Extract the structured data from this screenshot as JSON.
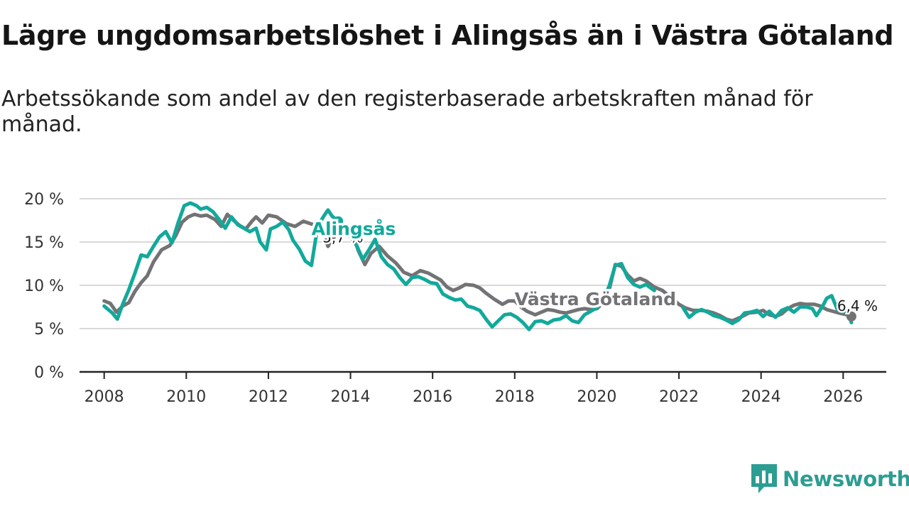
{
  "title": "Lägre ungdomsarbetslöshet i Alingsås än i Västra Götaland",
  "subtitle": "Arbetssökande som andel av den registerbaserade arbetskraften månad för månad.",
  "brand": {
    "name": "Newsworthy",
    "icon": "newsworthy-logo-icon"
  },
  "colors": {
    "alingsas": "#12a99b",
    "vastra": "#737376",
    "grid": "#d9d9d9",
    "axis": "#222222"
  },
  "chart_data": {
    "type": "line",
    "xlabel": "",
    "ylabel": "",
    "xlim": [
      2007.4,
      2027.05
    ],
    "ylim": [
      0,
      20
    ],
    "yticks": [
      0,
      5,
      10,
      15,
      20
    ],
    "ytick_labels": [
      "0 %",
      "5 %",
      "10 %",
      "15 %",
      "20 %"
    ],
    "xticks": [
      2008,
      2010,
      2012,
      2014,
      2016,
      2018,
      2020,
      2022,
      2024,
      2026
    ],
    "xtick_labels": [
      "2008",
      "2010",
      "2012",
      "2014",
      "2016",
      "2018",
      "2020",
      "2022",
      "2024",
      "2026"
    ],
    "series": [
      {
        "name": "Västra Götaland",
        "key": "vastra",
        "label": "Västra Götaland",
        "end_label": "6,4 %",
        "points": [
          [
            2008.0,
            8.2
          ],
          [
            2008.15,
            7.9
          ],
          [
            2008.3,
            6.9
          ],
          [
            2008.45,
            7.6
          ],
          [
            2008.6,
            8.0
          ],
          [
            2008.75,
            9.3
          ],
          [
            2008.9,
            10.3
          ],
          [
            2009.05,
            11.1
          ],
          [
            2009.2,
            12.7
          ],
          [
            2009.4,
            14.1
          ],
          [
            2009.6,
            14.6
          ],
          [
            2009.75,
            15.8
          ],
          [
            2009.9,
            17.3
          ],
          [
            2010.05,
            17.9
          ],
          [
            2010.2,
            18.2
          ],
          [
            2010.35,
            18.0
          ],
          [
            2010.5,
            18.1
          ],
          [
            2010.7,
            17.6
          ],
          [
            2010.85,
            16.8
          ],
          [
            2011.0,
            18.2
          ],
          [
            2011.15,
            17.5
          ],
          [
            2011.3,
            16.9
          ],
          [
            2011.45,
            16.5
          ],
          [
            2011.6,
            17.4
          ],
          [
            2011.7,
            17.9
          ],
          [
            2011.85,
            17.2
          ],
          [
            2012.0,
            18.1
          ],
          [
            2012.2,
            17.9
          ],
          [
            2012.45,
            17.1
          ],
          [
            2012.65,
            16.8
          ],
          [
            2012.85,
            17.4
          ],
          [
            2013.1,
            17.0
          ],
          [
            2013.3,
            16.6
          ],
          [
            2013.45,
            14.5
          ],
          [
            2013.65,
            15.9
          ],
          [
            2013.85,
            16.6
          ],
          [
            2014.05,
            15.9
          ],
          [
            2014.2,
            13.9
          ],
          [
            2014.35,
            12.4
          ],
          [
            2014.5,
            13.7
          ],
          [
            2014.7,
            14.5
          ],
          [
            2014.9,
            13.4
          ],
          [
            2015.1,
            12.6
          ],
          [
            2015.3,
            11.5
          ],
          [
            2015.5,
            11.1
          ],
          [
            2015.7,
            11.7
          ],
          [
            2015.9,
            11.4
          ],
          [
            2016.05,
            11.0
          ],
          [
            2016.2,
            10.6
          ],
          [
            2016.35,
            9.8
          ],
          [
            2016.5,
            9.4
          ],
          [
            2016.65,
            9.7
          ],
          [
            2016.8,
            10.1
          ],
          [
            2017.0,
            10.0
          ],
          [
            2017.15,
            9.7
          ],
          [
            2017.3,
            9.1
          ],
          [
            2017.5,
            8.4
          ],
          [
            2017.7,
            7.8
          ],
          [
            2017.85,
            8.2
          ],
          [
            2018.0,
            8.2
          ],
          [
            2018.15,
            7.5
          ],
          [
            2018.3,
            7.0
          ],
          [
            2018.5,
            6.6
          ],
          [
            2018.65,
            6.9
          ],
          [
            2018.8,
            7.2
          ],
          [
            2018.95,
            7.1
          ],
          [
            2019.1,
            6.9
          ],
          [
            2019.25,
            6.8
          ],
          [
            2019.4,
            7.0
          ],
          [
            2019.55,
            7.2
          ],
          [
            2019.7,
            7.3
          ],
          [
            2019.85,
            7.2
          ],
          [
            2020.0,
            7.3
          ],
          [
            2020.15,
            8.0
          ],
          [
            2020.3,
            9.5
          ],
          [
            2020.45,
            12.4
          ],
          [
            2020.6,
            12.2
          ],
          [
            2020.75,
            11.2
          ],
          [
            2020.9,
            10.5
          ],
          [
            2021.05,
            10.8
          ],
          [
            2021.2,
            10.5
          ],
          [
            2021.4,
            9.8
          ],
          [
            2021.6,
            9.4
          ],
          [
            2021.8,
            8.6
          ],
          [
            2022.0,
            7.8
          ],
          [
            2022.15,
            7.4
          ],
          [
            2022.35,
            7.1
          ],
          [
            2022.55,
            7.1
          ],
          [
            2022.7,
            7.0
          ],
          [
            2022.85,
            6.8
          ],
          [
            2023.0,
            6.5
          ],
          [
            2023.15,
            6.1
          ],
          [
            2023.3,
            5.9
          ],
          [
            2023.5,
            6.3
          ],
          [
            2023.7,
            6.8
          ],
          [
            2023.9,
            6.9
          ],
          [
            2024.05,
            7.1
          ],
          [
            2024.2,
            6.6
          ],
          [
            2024.35,
            6.4
          ],
          [
            2024.5,
            6.7
          ],
          [
            2024.65,
            7.3
          ],
          [
            2024.8,
            7.7
          ],
          [
            2024.95,
            7.9
          ],
          [
            2025.1,
            7.8
          ],
          [
            2025.3,
            7.8
          ],
          [
            2025.45,
            7.6
          ],
          [
            2025.6,
            7.2
          ],
          [
            2025.75,
            7.0
          ],
          [
            2025.9,
            6.8
          ],
          [
            2026.1,
            6.6
          ],
          [
            2026.2,
            6.4
          ]
        ]
      },
      {
        "name": "Alingsås",
        "key": "alingsas",
        "label": "Alingsås",
        "end_label": "5,7 %",
        "points": [
          [
            2008.0,
            7.6
          ],
          [
            2008.1,
            7.2
          ],
          [
            2008.2,
            6.8
          ],
          [
            2008.32,
            6.1
          ],
          [
            2008.45,
            7.8
          ],
          [
            2008.6,
            9.5
          ],
          [
            2008.75,
            11.4
          ],
          [
            2008.9,
            13.5
          ],
          [
            2009.05,
            13.3
          ],
          [
            2009.2,
            14.5
          ],
          [
            2009.35,
            15.6
          ],
          [
            2009.5,
            16.2
          ],
          [
            2009.65,
            14.9
          ],
          [
            2009.8,
            17.2
          ],
          [
            2009.95,
            19.2
          ],
          [
            2010.1,
            19.5
          ],
          [
            2010.25,
            19.2
          ],
          [
            2010.35,
            18.8
          ],
          [
            2010.5,
            19.0
          ],
          [
            2010.65,
            18.5
          ],
          [
            2010.8,
            17.6
          ],
          [
            2010.95,
            16.6
          ],
          [
            2011.1,
            17.9
          ],
          [
            2011.25,
            17.0
          ],
          [
            2011.4,
            16.6
          ],
          [
            2011.55,
            16.2
          ],
          [
            2011.7,
            16.6
          ],
          [
            2011.8,
            15.0
          ],
          [
            2011.95,
            14.1
          ],
          [
            2012.05,
            16.5
          ],
          [
            2012.2,
            16.8
          ],
          [
            2012.35,
            17.3
          ],
          [
            2012.5,
            16.4
          ],
          [
            2012.6,
            15.2
          ],
          [
            2012.75,
            14.2
          ],
          [
            2012.9,
            12.8
          ],
          [
            2013.05,
            12.3
          ],
          [
            2013.2,
            16.8
          ],
          [
            2013.35,
            18.0
          ],
          [
            2013.45,
            18.7
          ],
          [
            2013.55,
            18.0
          ],
          [
            2013.7,
            17.4
          ]
        ]
      },
      {
        "name": "Alingsås",
        "key": "alingsas",
        "label": "",
        "end_label": "",
        "points": [
          [
            2014.0,
            15.6
          ],
          [
            2014.15,
            14.6
          ],
          [
            2014.3,
            13.0
          ],
          [
            2014.45,
            14.1
          ],
          [
            2014.6,
            15.3
          ],
          [
            2014.75,
            13.3
          ],
          [
            2014.9,
            12.4
          ],
          [
            2015.05,
            11.9
          ],
          [
            2015.2,
            10.9
          ],
          [
            2015.35,
            10.1
          ],
          [
            2015.5,
            10.9
          ],
          [
            2015.65,
            11.0
          ],
          [
            2015.8,
            10.7
          ],
          [
            2015.95,
            10.3
          ],
          [
            2016.1,
            10.2
          ],
          [
            2016.25,
            9.0
          ],
          [
            2016.4,
            8.6
          ],
          [
            2016.55,
            8.3
          ],
          [
            2016.7,
            8.4
          ],
          [
            2016.85,
            7.6
          ],
          [
            2017.0,
            7.4
          ],
          [
            2017.15,
            7.1
          ],
          [
            2017.3,
            6.1
          ],
          [
            2017.45,
            5.2
          ],
          [
            2017.6,
            5.9
          ],
          [
            2017.75,
            6.6
          ],
          [
            2017.9,
            6.7
          ],
          [
            2018.05,
            6.3
          ],
          [
            2018.2,
            5.7
          ],
          [
            2018.35,
            4.9
          ],
          [
            2018.5,
            5.8
          ],
          [
            2018.65,
            5.9
          ],
          [
            2018.8,
            5.6
          ],
          [
            2018.95,
            6.0
          ],
          [
            2019.1,
            6.1
          ],
          [
            2019.25,
            6.5
          ],
          [
            2019.4,
            5.9
          ],
          [
            2019.55,
            5.7
          ],
          [
            2019.7,
            6.6
          ],
          [
            2019.85,
            7.0
          ],
          [
            2020.0,
            7.4
          ],
          [
            2020.15,
            8.4
          ],
          [
            2020.3,
            9.9
          ],
          [
            2020.45,
            12.3
          ],
          [
            2020.6,
            12.5
          ],
          [
            2020.75,
            10.9
          ],
          [
            2020.9,
            10.1
          ],
          [
            2021.05,
            9.8
          ],
          [
            2021.2,
            10.1
          ],
          [
            2021.4,
            9.4
          ]
        ]
      },
      {
        "name": "Alingsås",
        "key": "alingsas",
        "label": "",
        "end_label": "",
        "points": [
          [
            2022.1,
            7.4
          ],
          [
            2022.25,
            6.3
          ],
          [
            2022.4,
            6.9
          ],
          [
            2022.55,
            7.2
          ],
          [
            2022.7,
            6.9
          ],
          [
            2022.85,
            6.5
          ],
          [
            2023.0,
            6.3
          ],
          [
            2023.15,
            6.0
          ],
          [
            2023.3,
            5.6
          ],
          [
            2023.45,
            6.0
          ],
          [
            2023.6,
            6.8
          ],
          [
            2023.75,
            6.9
          ],
          [
            2023.9,
            7.1
          ],
          [
            2024.05,
            6.4
          ],
          [
            2024.2,
            7.0
          ],
          [
            2024.35,
            6.3
          ],
          [
            2024.5,
            7.1
          ],
          [
            2024.65,
            7.4
          ],
          [
            2024.8,
            6.9
          ],
          [
            2024.95,
            7.5
          ],
          [
            2025.1,
            7.5
          ],
          [
            2025.25,
            7.3
          ],
          [
            2025.35,
            6.5
          ],
          [
            2025.5,
            7.6
          ],
          [
            2025.6,
            8.5
          ],
          [
            2025.72,
            8.8
          ],
          [
            2025.85,
            7.3
          ],
          [
            2026.0,
            6.9
          ],
          [
            2026.1,
            7.0
          ],
          [
            2026.2,
            5.7
          ]
        ]
      }
    ]
  }
}
